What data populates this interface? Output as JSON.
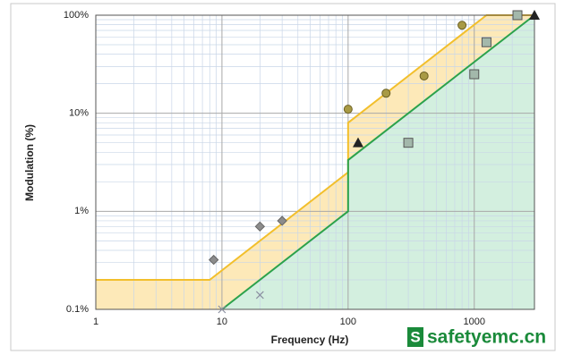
{
  "chart_data": {
    "type": "scatter",
    "x_label": "Frequency (Hz)",
    "y_label": "Modulation (%)",
    "log_x": true,
    "log_y": true,
    "grid": true,
    "xlim": [
      1,
      3000
    ],
    "ylim": [
      0.1,
      100
    ],
    "xticks": [
      1,
      10,
      100,
      1000
    ],
    "yticks": [
      {
        "value": 0.1,
        "label": "0.1%"
      },
      {
        "value": 1,
        "label": "1%"
      },
      {
        "value": 10,
        "label": "10%"
      },
      {
        "value": 100,
        "label": "100%"
      }
    ],
    "x_minor_ticks": [
      2,
      3,
      4,
      5,
      6,
      7,
      8,
      9,
      20,
      30,
      40,
      50,
      60,
      70,
      80,
      90,
      200,
      300,
      400,
      500,
      600,
      700,
      800,
      900,
      2000
    ],
    "y_minor_ticks": [
      0.2,
      0.3,
      0.4,
      0.5,
      0.6,
      0.7,
      0.8,
      0.9,
      2,
      3,
      4,
      5,
      6,
      7,
      8,
      9,
      20,
      30,
      40,
      50,
      60,
      70,
      80,
      90
    ],
    "series": [
      {
        "marker": "line",
        "color": "#f2bf2c",
        "fill": "#fde9b8",
        "x": [
          1,
          8,
          100,
          100,
          1250,
          3000
        ],
        "values": [
          0.2,
          0.2,
          2.5,
          8,
          100,
          100
        ]
      },
      {
        "marker": "line",
        "color": "#2ca24c",
        "fill": "#d3efdf",
        "x": [
          10,
          100,
          100,
          3000
        ],
        "values": [
          0.1,
          1,
          3.33,
          100
        ]
      },
      {
        "marker": "diamond",
        "color": "#8c8c8c",
        "x": [
          8.6,
          20,
          30
        ],
        "values": [
          0.32,
          0.7,
          0.8
        ]
      },
      {
        "marker": "circle",
        "color": "#a89a45",
        "x": [
          100,
          200,
          400,
          800
        ],
        "values": [
          11,
          16,
          24,
          79
        ]
      },
      {
        "marker": "triangle",
        "color": "#222222",
        "x": [
          120,
          3000
        ],
        "values": [
          5,
          100
        ]
      },
      {
        "marker": "square",
        "color": "#a3b8ab",
        "x": [
          300,
          1000,
          1250,
          2200
        ],
        "values": [
          5,
          25,
          53,
          100
        ]
      },
      {
        "marker": "cross",
        "color": "#8a8fa0",
        "x": [
          10,
          20
        ],
        "values": [
          0.1,
          0.14
        ]
      }
    ]
  },
  "watermark": {
    "icon": "S",
    "text": "safetyemc.cn"
  }
}
